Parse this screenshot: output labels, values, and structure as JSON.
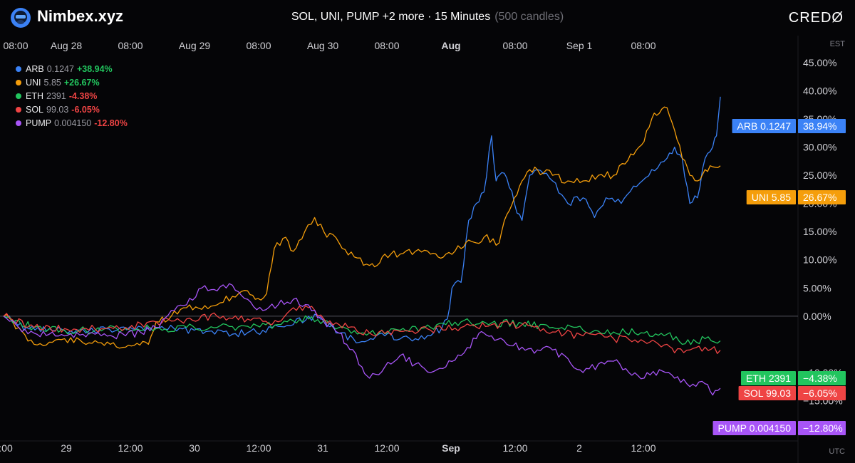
{
  "header": {
    "brand": "Nimbex.xyz",
    "title": "SOL, UNI, PUMP +2 more · 15 Minutes",
    "candles": "(500 candles)",
    "credo": "CREDØ"
  },
  "timezones": {
    "top": "EST",
    "bottom": "UTC"
  },
  "top_ticks": [
    "08:00",
    "Aug 28",
    "08:00",
    "Aug 29",
    "08:00",
    "Aug 30",
    "08:00",
    "Aug",
    "08:00",
    "Sep 1",
    "08:00"
  ],
  "bottom_ticks": [
    ":00",
    "29",
    "12:00",
    "30",
    "12:00",
    "31",
    "12:00",
    "Sep",
    "12:00",
    "2",
    "12:00"
  ],
  "legend": [
    {
      "name": "ARB",
      "price": "0.1247",
      "change": "+38.94%",
      "color": "#3b82f6",
      "change_color": "#22c55e"
    },
    {
      "name": "UNI",
      "price": "5.85",
      "change": "+26.67%",
      "color": "#f59e0b",
      "change_color": "#22c55e"
    },
    {
      "name": "ETH",
      "price": "2391",
      "change": "-4.38%",
      "color": "#22c55e",
      "change_color": "#ef4444"
    },
    {
      "name": "SOL",
      "price": "99.03",
      "change": "-6.05%",
      "color": "#ef4444",
      "change_color": "#ef4444"
    },
    {
      "name": "PUMP",
      "price": "0.004150",
      "change": "-12.80%",
      "color": "#a855f7",
      "change_color": "#ef4444"
    }
  ],
  "price_tags": [
    {
      "label": "ARB 0.1247",
      "value": "38.94%",
      "color": "#3b82f6"
    },
    {
      "label": "UNI 5.85",
      "value": "26.67%",
      "color": "#f59e0b"
    },
    {
      "label": "ETH 2391",
      "value": "−4.38%",
      "color": "#22c55e"
    },
    {
      "label": "SOL 99.03",
      "value": "−6.05%",
      "color": "#ef4444"
    },
    {
      "label": "PUMP 0.004150",
      "value": "−12.80%",
      "color": "#a855f7"
    }
  ],
  "chart_data": {
    "type": "line",
    "xlim": [
      0,
      1040
    ],
    "ylim": [
      -21,
      47
    ],
    "y_ticks": [
      {
        "value": 45,
        "label": "45.00%"
      },
      {
        "value": 40,
        "label": "40.00%"
      },
      {
        "value": 35,
        "label": "35.00%"
      },
      {
        "value": 30,
        "label": "30.00%"
      },
      {
        "value": 25,
        "label": "25.00%"
      },
      {
        "value": 20,
        "label": "20.00%"
      },
      {
        "value": 15,
        "label": "15.00%"
      },
      {
        "value": 10,
        "label": "10.00%"
      },
      {
        "value": 5,
        "label": "5.00%"
      },
      {
        "value": 0,
        "label": "0.00%"
      },
      {
        "value": -10,
        "label": "−10.00%"
      },
      {
        "value": -15,
        "label": "−15.00%"
      },
      {
        "value": -20,
        "label": "−20.00%"
      }
    ],
    "series": [
      {
        "name": "ARB",
        "color": "#3b82f6",
        "points": [
          [
            0,
            0
          ],
          [
            30,
            -2
          ],
          [
            60,
            -2.2
          ],
          [
            100,
            -2.5
          ],
          [
            150,
            -2.4
          ],
          [
            200,
            -2
          ],
          [
            250,
            -2.5
          ],
          [
            300,
            -3.2
          ],
          [
            340,
            -2.5
          ],
          [
            380,
            -1.5
          ],
          [
            400,
            0
          ],
          [
            420,
            -0.5
          ],
          [
            440,
            -3
          ],
          [
            470,
            -4.5
          ],
          [
            500,
            -3.5
          ],
          [
            540,
            -4
          ],
          [
            560,
            -3.5
          ],
          [
            575,
            -2
          ],
          [
            582,
            -0.5
          ],
          [
            588,
            5
          ],
          [
            600,
            6
          ],
          [
            610,
            17
          ],
          [
            620,
            20
          ],
          [
            630,
            22
          ],
          [
            640,
            32
          ],
          [
            646,
            24
          ],
          [
            650,
            25
          ],
          [
            660,
            24.5
          ],
          [
            670,
            20
          ],
          [
            680,
            17
          ],
          [
            690,
            25
          ],
          [
            700,
            26
          ],
          [
            720,
            24
          ],
          [
            740,
            20
          ],
          [
            760,
            21
          ],
          [
            775,
            17.5
          ],
          [
            790,
            21
          ],
          [
            810,
            20
          ],
          [
            830,
            23
          ],
          [
            850,
            26
          ],
          [
            870,
            28
          ],
          [
            880,
            30
          ],
          [
            890,
            28
          ],
          [
            900,
            20
          ],
          [
            910,
            21
          ],
          [
            920,
            28
          ],
          [
            930,
            30
          ],
          [
            935,
            32
          ],
          [
            940,
            38.94
          ]
        ]
      },
      {
        "name": "UNI",
        "color": "#f59e0b",
        "points": [
          [
            0,
            0
          ],
          [
            20,
            -2
          ],
          [
            40,
            -5
          ],
          [
            80,
            -4
          ],
          [
            100,
            -4.2
          ],
          [
            140,
            -5
          ],
          [
            160,
            -5.5
          ],
          [
            190,
            -5
          ],
          [
            200,
            -1
          ],
          [
            220,
            0
          ],
          [
            240,
            1.5
          ],
          [
            280,
            2
          ],
          [
            300,
            3.5
          ],
          [
            320,
            4.5
          ],
          [
            330,
            3
          ],
          [
            345,
            4
          ],
          [
            355,
            12
          ],
          [
            370,
            14
          ],
          [
            380,
            11.5
          ],
          [
            395,
            15
          ],
          [
            408,
            17.5
          ],
          [
            420,
            15
          ],
          [
            440,
            13
          ],
          [
            460,
            10.5
          ],
          [
            480,
            9
          ],
          [
            490,
            9
          ],
          [
            500,
            11
          ],
          [
            520,
            11
          ],
          [
            540,
            11.5
          ],
          [
            560,
            11
          ],
          [
            570,
            10.5
          ],
          [
            580,
            11
          ],
          [
            600,
            12
          ],
          [
            610,
            13.5
          ],
          [
            620,
            13
          ],
          [
            630,
            14
          ],
          [
            650,
            13
          ],
          [
            660,
            18
          ],
          [
            670,
            21
          ],
          [
            680,
            24
          ],
          [
            690,
            26
          ],
          [
            700,
            26
          ],
          [
            720,
            25
          ],
          [
            740,
            24
          ],
          [
            760,
            24
          ],
          [
            780,
            25
          ],
          [
            800,
            25
          ],
          [
            815,
            27
          ],
          [
            830,
            29.5
          ],
          [
            840,
            31
          ],
          [
            850,
            35
          ],
          [
            860,
            36
          ],
          [
            870,
            37
          ],
          [
            880,
            33
          ],
          [
            890,
            28
          ],
          [
            900,
            25
          ],
          [
            910,
            24
          ],
          [
            920,
            26
          ],
          [
            930,
            26.5
          ],
          [
            940,
            26.67
          ]
        ]
      },
      {
        "name": "ETH",
        "color": "#22c55e",
        "points": [
          [
            0,
            0
          ],
          [
            40,
            -2
          ],
          [
            80,
            -2.5
          ],
          [
            120,
            -2.5
          ],
          [
            160,
            -2.2
          ],
          [
            200,
            -2.2
          ],
          [
            240,
            -2
          ],
          [
            280,
            -2
          ],
          [
            320,
            -1.8
          ],
          [
            360,
            -1.5
          ],
          [
            400,
            -0.5
          ],
          [
            420,
            -0.8
          ],
          [
            440,
            -2
          ],
          [
            480,
            -3
          ],
          [
            520,
            -2.5
          ],
          [
            560,
            -2
          ],
          [
            580,
            -1.5
          ],
          [
            600,
            -1
          ],
          [
            640,
            -1.2
          ],
          [
            680,
            -1.3
          ],
          [
            720,
            -2
          ],
          [
            760,
            -2.5
          ],
          [
            800,
            -2.8
          ],
          [
            840,
            -3
          ],
          [
            870,
            -3.2
          ],
          [
            890,
            -5
          ],
          [
            920,
            -4
          ],
          [
            940,
            -4.38
          ]
        ]
      },
      {
        "name": "SOL",
        "color": "#ef4444",
        "points": [
          [
            0,
            0
          ],
          [
            40,
            -2
          ],
          [
            80,
            -2.2
          ],
          [
            120,
            -2.3
          ],
          [
            160,
            -2
          ],
          [
            200,
            -1
          ],
          [
            240,
            -0.5
          ],
          [
            280,
            0
          ],
          [
            320,
            -0.5
          ],
          [
            360,
            -1
          ],
          [
            380,
            1.5
          ],
          [
            400,
            1.5
          ],
          [
            420,
            -0.5
          ],
          [
            440,
            -1.5
          ],
          [
            480,
            -3
          ],
          [
            520,
            -2.7
          ],
          [
            560,
            -2.5
          ],
          [
            600,
            -2
          ],
          [
            640,
            -1.5
          ],
          [
            680,
            -1.5
          ],
          [
            720,
            -2.8
          ],
          [
            760,
            -3.5
          ],
          [
            800,
            -4
          ],
          [
            840,
            -4.5
          ],
          [
            870,
            -5
          ],
          [
            880,
            -6.5
          ],
          [
            900,
            -6
          ],
          [
            920,
            -5.5
          ],
          [
            940,
            -6.05
          ]
        ]
      },
      {
        "name": "PUMP",
        "color": "#a855f7",
        "points": [
          [
            0,
            0
          ],
          [
            20,
            -2
          ],
          [
            40,
            -3
          ],
          [
            80,
            -3.5
          ],
          [
            120,
            -3.2
          ],
          [
            160,
            -3.5
          ],
          [
            200,
            -2
          ],
          [
            220,
            1
          ],
          [
            240,
            2
          ],
          [
            260,
            5
          ],
          [
            280,
            4.5
          ],
          [
            300,
            5.5
          ],
          [
            320,
            3
          ],
          [
            340,
            1
          ],
          [
            360,
            2
          ],
          [
            380,
            3
          ],
          [
            400,
            2
          ],
          [
            420,
            -1
          ],
          [
            440,
            -3
          ],
          [
            450,
            -5
          ],
          [
            470,
            -9
          ],
          [
            480,
            -11
          ],
          [
            500,
            -9
          ],
          [
            520,
            -7
          ],
          [
            540,
            -8.5
          ],
          [
            560,
            -10
          ],
          [
            580,
            -9
          ],
          [
            600,
            -7
          ],
          [
            620,
            -4
          ],
          [
            630,
            -3
          ],
          [
            640,
            -3.5
          ],
          [
            660,
            -5
          ],
          [
            680,
            -5.5
          ],
          [
            700,
            -6
          ],
          [
            720,
            -6
          ],
          [
            740,
            -7.5
          ],
          [
            760,
            -10
          ],
          [
            780,
            -8.5
          ],
          [
            800,
            -8
          ],
          [
            820,
            -10
          ],
          [
            840,
            -11
          ],
          [
            860,
            -9.5
          ],
          [
            880,
            -11
          ],
          [
            900,
            -12.5
          ],
          [
            920,
            -12
          ],
          [
            930,
            -14
          ],
          [
            940,
            -12.8
          ]
        ]
      }
    ]
  }
}
